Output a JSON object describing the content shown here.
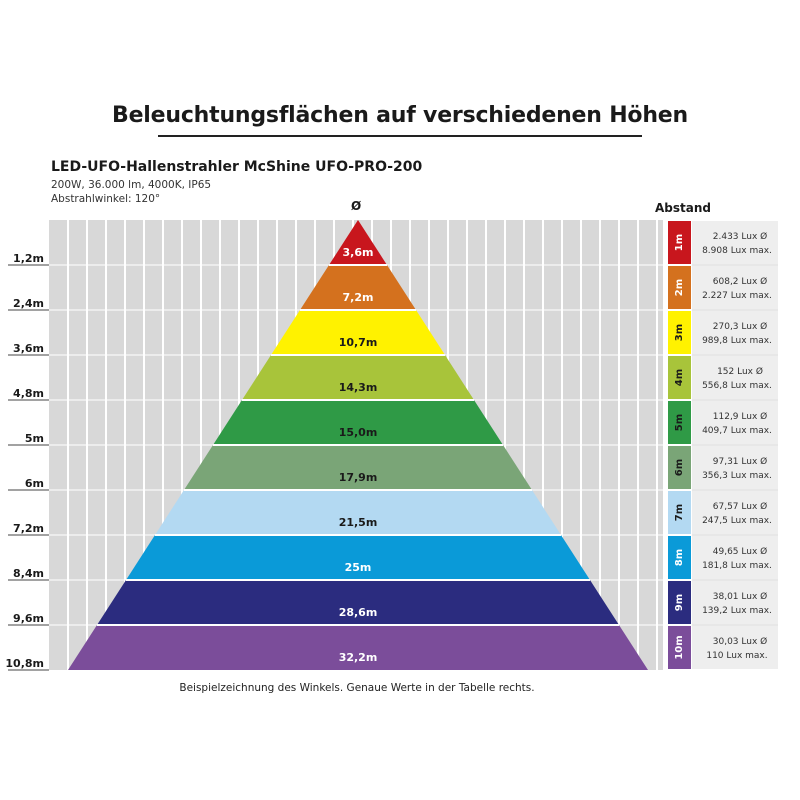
{
  "title": "Beleuchtungsflächen auf verschiedenen Höhen",
  "product": "LED-UFO-Hallenstrahler McShine UFO-PRO-200",
  "specs": [
    "200W, 36.000 lm, 4000K, IP65",
    "Abstrahlwinkel: 120°"
  ],
  "diameter_symbol": "Ø",
  "distance_header": "Abstand",
  "caption": "Beispielzeichnung des Winkels. Genaue Werte in der Tabelle rechts.",
  "chart_data": {
    "type": "table",
    "height_axis_labels": [
      "1,2m",
      "2,4m",
      "3,6m",
      "4,8m",
      "5m",
      "6m",
      "7,2m",
      "8,4m",
      "9,6m",
      "10,8m"
    ],
    "rows": [
      {
        "distance": "1m",
        "diameter": "3,6m",
        "lux_avg": "2.433 Lux Ø",
        "lux_max": "8.908 Lux max.",
        "color": "#c8161d",
        "text_color": "#ffffff"
      },
      {
        "distance": "2m",
        "diameter": "7,2m",
        "lux_avg": "608,2 Lux Ø",
        "lux_max": "2.227 Lux max.",
        "color": "#d4711e",
        "text_color": "#ffffff"
      },
      {
        "distance": "3m",
        "diameter": "10,7m",
        "lux_avg": "270,3 Lux Ø",
        "lux_max": "989,8 Lux max.",
        "color": "#fff200",
        "text_color": "#1a1a1a"
      },
      {
        "distance": "4m",
        "diameter": "14,3m",
        "lux_avg": "152 Lux Ø",
        "lux_max": "556,8 Lux max.",
        "color": "#a8c43a",
        "text_color": "#1a1a1a"
      },
      {
        "distance": "5m",
        "diameter": "15,0m",
        "lux_avg": "112,9 Lux Ø",
        "lux_max": "409,7 Lux max.",
        "color": "#2f9a46",
        "text_color": "#1a1a1a"
      },
      {
        "distance": "6m",
        "diameter": "17,9m",
        "lux_avg": "97,31 Lux Ø",
        "lux_max": "356,3 Lux max.",
        "color": "#7aa577",
        "text_color": "#1a1a1a"
      },
      {
        "distance": "7m",
        "diameter": "21,5m",
        "lux_avg": "67,57 Lux Ø",
        "lux_max": "247,5 Lux max.",
        "color": "#b3d9f2",
        "text_color": "#1a1a1a"
      },
      {
        "distance": "8m",
        "diameter": "25m",
        "lux_avg": "49,65 Lux Ø",
        "lux_max": "181,8 Lux max.",
        "color": "#0a9ad8",
        "text_color": "#ffffff"
      },
      {
        "distance": "9m",
        "diameter": "28,6m",
        "lux_avg": "38,01 Lux Ø",
        "lux_max": "139,2 Lux max.",
        "color": "#2b2c7f",
        "text_color": "#ffffff"
      },
      {
        "distance": "10m",
        "diameter": "32,2m",
        "lux_avg": "30,03 Lux Ø",
        "lux_max": "110 Lux max.",
        "color": "#7b4d9a",
        "text_color": "#ffffff"
      }
    ]
  }
}
